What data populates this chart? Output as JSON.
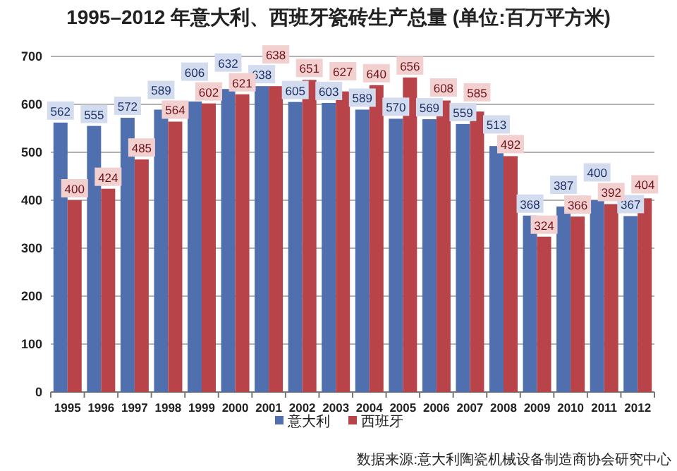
{
  "chart_data": {
    "type": "bar",
    "title": "1995–2012 年意大利、西班牙瓷砖生产总量 (单位:百万平方米)",
    "categories": [
      "1995",
      "1996",
      "1997",
      "1998",
      "1999",
      "2000",
      "2001",
      "2002",
      "2003",
      "2004",
      "2005",
      "2006",
      "2007",
      "2008",
      "2009",
      "2010",
      "2011",
      "2012"
    ],
    "series": [
      {
        "name": "意大利",
        "color": "#4f6fae",
        "values": [
          562,
          555,
          572,
          589,
          606,
          632,
          638,
          605,
          603,
          589,
          570,
          569,
          559,
          513,
          368,
          387,
          400,
          367
        ]
      },
      {
        "name": "西班牙",
        "color": "#b8444a",
        "values": [
          400,
          424,
          485,
          564,
          602,
          621,
          638,
          651,
          627,
          640,
          656,
          608,
          585,
          492,
          324,
          366,
          392,
          404
        ]
      }
    ],
    "ylim": [
      0,
      700
    ],
    "yticks": [
      0,
      100,
      200,
      300,
      400,
      500,
      600,
      700
    ],
    "grid": "y",
    "legend": "bottom",
    "data_labels": true,
    "annotations": [
      "数据来源:意大利陶瓷机械设备制造商协会研究中心"
    ]
  }
}
